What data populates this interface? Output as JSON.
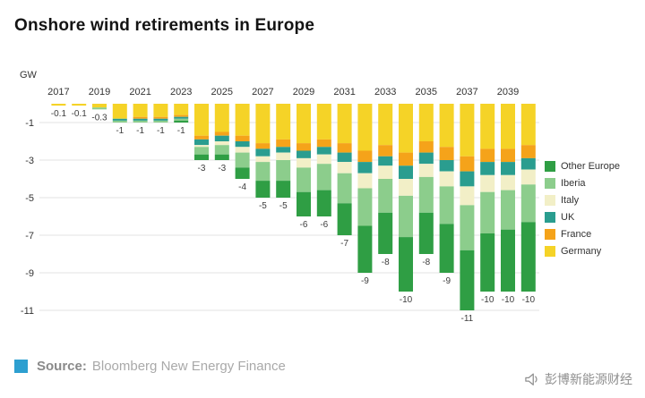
{
  "page": {
    "title": "Onshore wind retirements in Europe",
    "source": {
      "label": "Source:",
      "name": "Bloomberg New Energy Finance"
    },
    "watermark": "彭博新能源财经",
    "accent_blue": "#2d9fd0"
  },
  "chart_data": {
    "type": "bar",
    "stacked": true,
    "orientation": "vertical-negative",
    "title": "Onshore wind retirements in Europe",
    "unit": "GW",
    "grid": true,
    "legend_position": "right",
    "ylim": [
      -11.5,
      0
    ],
    "y_ticks": [
      -1,
      -3,
      -5,
      -7,
      -9,
      -11
    ],
    "years": [
      2017,
      2018,
      2019,
      2020,
      2021,
      2022,
      2023,
      2024,
      2025,
      2026,
      2027,
      2028,
      2029,
      2030,
      2031,
      2032,
      2033,
      2034,
      2035,
      2036,
      2037,
      2038,
      2039,
      2040
    ],
    "x_tick_labels": [
      "2017",
      "2019",
      "2021",
      "2023",
      "2025",
      "2027",
      "2029",
      "2031",
      "2033",
      "2035",
      "2037",
      "2039"
    ],
    "series": [
      {
        "name": "Germany",
        "color": "#f5d327",
        "values": [
          -0.1,
          -0.1,
          -0.2,
          -0.8,
          -0.7,
          -0.7,
          -0.6,
          -1.7,
          -1.5,
          -1.7,
          -2.1,
          -1.9,
          -2.1,
          -1.9,
          -2.1,
          -2.5,
          -2.2,
          -2.6,
          -2.0,
          -2.3,
          -2.8,
          -2.4,
          -2.4,
          -2.2
        ]
      },
      {
        "name": "France",
        "color": "#f5a31a",
        "values": [
          0,
          0,
          0,
          0,
          -0.1,
          -0.1,
          -0.1,
          -0.2,
          -0.2,
          -0.3,
          -0.3,
          -0.4,
          -0.4,
          -0.4,
          -0.5,
          -0.6,
          -0.6,
          -0.7,
          -0.6,
          -0.7,
          -0.8,
          -0.7,
          -0.7,
          -0.7
        ]
      },
      {
        "name": "UK",
        "color": "#2a9d8f",
        "values": [
          0,
          0,
          0,
          -0.1,
          -0.1,
          -0.1,
          -0.1,
          -0.3,
          -0.3,
          -0.3,
          -0.4,
          -0.3,
          -0.4,
          -0.4,
          -0.5,
          -0.6,
          -0.5,
          -0.7,
          -0.6,
          -0.6,
          -0.8,
          -0.7,
          -0.7,
          -0.6
        ]
      },
      {
        "name": "Italy",
        "color": "#f2efc7",
        "values": [
          0,
          0,
          0,
          0,
          0,
          0,
          0,
          -0.1,
          -0.2,
          -0.3,
          -0.3,
          -0.4,
          -0.5,
          -0.5,
          -0.6,
          -0.8,
          -0.7,
          -0.9,
          -0.7,
          -0.8,
          -1.0,
          -0.9,
          -0.8,
          -0.8
        ]
      },
      {
        "name": "Iberia",
        "color": "#8ccd8c",
        "values": [
          0,
          0,
          -0.1,
          -0.1,
          -0.1,
          -0.1,
          -0.1,
          -0.4,
          -0.5,
          -0.8,
          -1.0,
          -1.1,
          -1.3,
          -1.4,
          -1.6,
          -2.0,
          -1.8,
          -2.2,
          -1.9,
          -2.0,
          -2.4,
          -2.2,
          -2.1,
          -2.0
        ]
      },
      {
        "name": "Other Europe",
        "color": "#2f9e44",
        "values": [
          0,
          0,
          0,
          0,
          0,
          0,
          -0.1,
          -0.3,
          -0.3,
          -0.6,
          -0.9,
          -0.9,
          -1.3,
          -1.4,
          -1.7,
          -2.5,
          -2.2,
          -2.9,
          -2.2,
          -2.6,
          -3.2,
          -3.1,
          -3.3,
          -3.7
        ]
      }
    ],
    "totals_labels": [
      "-0.1",
      "-0.1",
      "-0.3",
      "-1",
      "-1",
      "-1",
      "-1",
      "-3",
      "-3",
      "-4",
      "-5",
      "-5",
      "-6",
      "-6",
      "-7",
      "-9",
      "-8",
      "-10",
      "-8",
      "-9",
      "-11",
      "-10",
      "-10",
      "-10"
    ],
    "legend": [
      {
        "label": "Other Europe",
        "color": "#2f9e44"
      },
      {
        "label": "Iberia",
        "color": "#8ccd8c"
      },
      {
        "label": "Italy",
        "color": "#f2efc7"
      },
      {
        "label": "UK",
        "color": "#2a9d8f"
      },
      {
        "label": "France",
        "color": "#f5a31a"
      },
      {
        "label": "Germany",
        "color": "#f5d327"
      }
    ]
  }
}
